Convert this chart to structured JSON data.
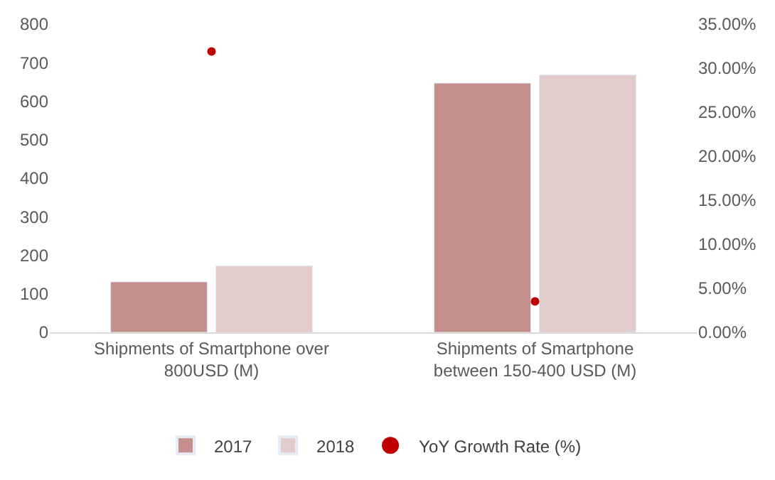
{
  "chart_data": {
    "type": "bar",
    "categories": [
      "Shipments of Smartphone over 800USD (M)",
      "Shipments of Smartphone between 150-400 USD (M)"
    ],
    "series": [
      {
        "name": "2017",
        "color": "#c48f8d",
        "values": [
          131,
          647
        ]
      },
      {
        "name": "2018",
        "color": "#e2cccb",
        "values": [
          173,
          668
        ]
      },
      {
        "name": "YoY Growth Rate (%)",
        "type": "scatter",
        "axis": "y2",
        "color": "#c00000",
        "x": [
          "Shipments of Smartphone over 800USD (M)",
          "Shipments of Smartphone between 150-400 USD (M)"
        ],
        "values": [
          31.9,
          3.5
        ]
      }
    ],
    "ylim": [
      0,
      800
    ],
    "yticks": [
      0,
      100,
      200,
      300,
      400,
      500,
      600,
      700,
      800
    ],
    "y2lim": [
      0,
      35
    ],
    "y2ticks": [
      {
        "value": 0,
        "label": "0.00%"
      },
      {
        "value": 5,
        "label": "5.00%"
      },
      {
        "value": 10,
        "label": "10.00%"
      },
      {
        "value": 15,
        "label": "15.00%"
      },
      {
        "value": 20,
        "label": "20.00%"
      },
      {
        "value": 25,
        "label": "25.00%"
      },
      {
        "value": 30,
        "label": "30.00%"
      },
      {
        "value": 35,
        "label": "35.00%"
      }
    ],
    "legend": "bottom",
    "marker": "circle"
  }
}
